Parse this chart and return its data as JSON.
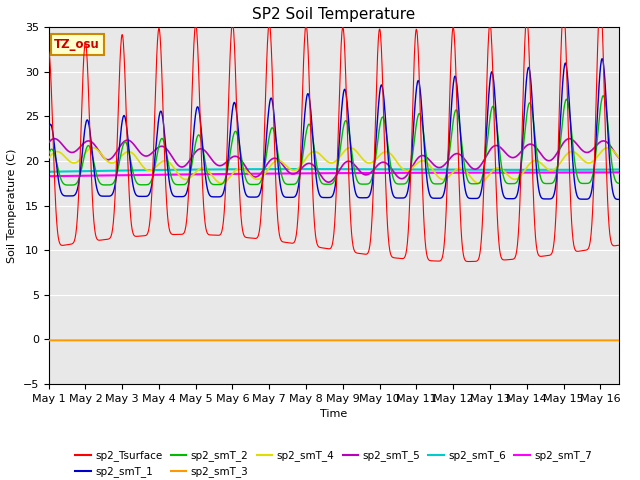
{
  "title": "SP2 Soil Temperature",
  "ylabel": "Soil Temperature (C)",
  "xlabel": "Time",
  "ylim": [
    -5,
    35
  ],
  "xlim": [
    0,
    15.5
  ],
  "tz_label": "TZ_osu",
  "series_colors": {
    "sp2_Tsurface": "#FF0000",
    "sp2_smT_1": "#0000CC",
    "sp2_smT_2": "#00BB00",
    "sp2_smT_3": "#FF9900",
    "sp2_smT_4": "#DDDD00",
    "sp2_smT_5": "#BB00BB",
    "sp2_smT_6": "#00CCCC",
    "sp2_smT_7": "#FF00FF"
  },
  "background_color": "#E8E8E8",
  "tick_label_dates": [
    "May 1",
    "May 2",
    "May 3",
    "May 4",
    "May 5",
    "May 6",
    "May 7",
    "May 8",
    "May 9",
    "May 10",
    "May 11",
    "May 12",
    "May 13",
    "May 14",
    "May 15",
    "May 16"
  ],
  "tick_positions": [
    0,
    1,
    2,
    3,
    4,
    5,
    6,
    7,
    8,
    9,
    10,
    11,
    12,
    13,
    14,
    15
  ],
  "yticks": [
    -5,
    0,
    5,
    10,
    15,
    20,
    25,
    30,
    35
  ],
  "figsize": [
    6.4,
    4.8
  ],
  "dpi": 100
}
